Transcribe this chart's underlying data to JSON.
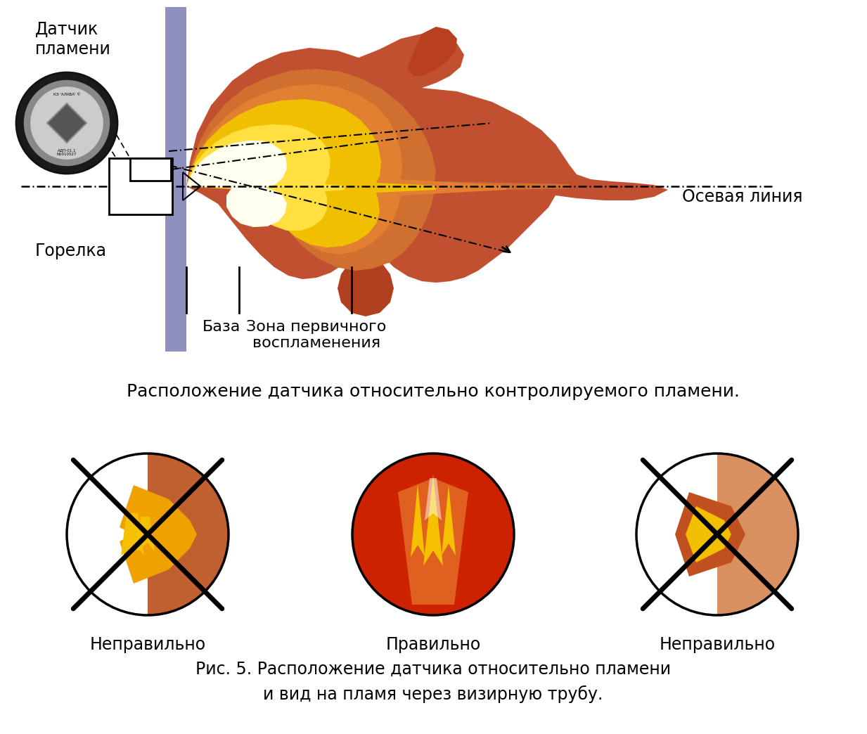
{
  "bg_color": "#ffffff",
  "wall_color": "#9090c0",
  "title_section2": "Расположение датчика относительно контролируемого пламени.",
  "caption_line1": "Рис. 5. Расположение датчика относительно пламени",
  "caption_line2": "и вид на пламя через визирную трубу.",
  "label_sensor": "Датчик\nпламени",
  "label_burner": "Горелка",
  "label_axis": "Осевая линия",
  "label_base": "База",
  "label_zone": "Зона первичного\nвоспламенения",
  "label_wrong": "Неправильно",
  "label_correct": "Правильно",
  "flame_dark_red": "#c05030",
  "flame_orange": "#d07030",
  "flame_orange2": "#e08030",
  "flame_yellow": "#f0c000",
  "flame_bright_yellow": "#ffe040",
  "flame_white": "#fffff0",
  "flame_red": "#cc2200",
  "flame_upper_red": "#b04020",
  "flame_lower_orange": "#c86020"
}
